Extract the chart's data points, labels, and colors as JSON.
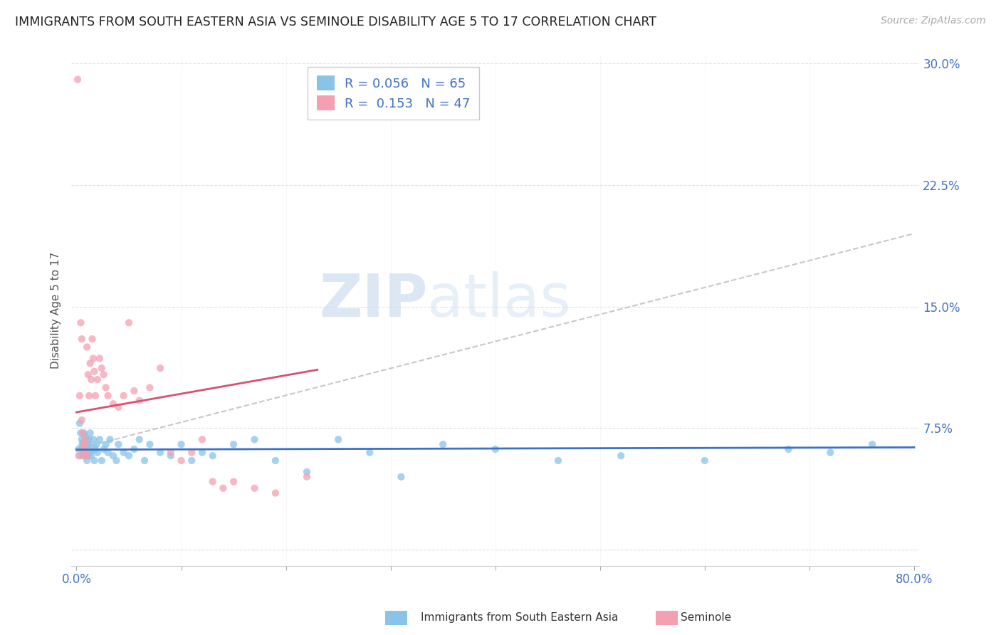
{
  "title": "IMMIGRANTS FROM SOUTH EASTERN ASIA VS SEMINOLE DISABILITY AGE 5 TO 17 CORRELATION CHART",
  "source": "Source: ZipAtlas.com",
  "ylabel": "Disability Age 5 to 17",
  "watermark_zip": "ZIP",
  "watermark_atlas": "atlas",
  "xlim": [
    0.0,
    0.8
  ],
  "ylim": [
    0.0,
    0.3
  ],
  "yticks": [
    0.0,
    0.075,
    0.15,
    0.225,
    0.3
  ],
  "ytick_labels": [
    "",
    "7.5%",
    "15.0%",
    "22.5%",
    "30.0%"
  ],
  "blue_R": 0.056,
  "blue_N": 65,
  "pink_R": 0.153,
  "pink_N": 47,
  "blue_color": "#89C4E8",
  "pink_color": "#F4A0B0",
  "blue_line_color": "#3B72C4",
  "pink_line_color": "#D95070",
  "grid_color": "#DDDDDD",
  "text_color": "#4472C4",
  "legend_label_blue": "Immigrants from South Eastern Asia",
  "legend_label_pink": "Seminole",
  "blue_x": [
    0.002,
    0.003,
    0.004,
    0.004,
    0.005,
    0.005,
    0.006,
    0.006,
    0.007,
    0.007,
    0.008,
    0.008,
    0.009,
    0.009,
    0.01,
    0.01,
    0.011,
    0.011,
    0.012,
    0.012,
    0.013,
    0.013,
    0.014,
    0.015,
    0.016,
    0.017,
    0.018,
    0.019,
    0.02,
    0.022,
    0.024,
    0.026,
    0.028,
    0.03,
    0.032,
    0.035,
    0.038,
    0.04,
    0.045,
    0.05,
    0.055,
    0.06,
    0.065,
    0.07,
    0.08,
    0.09,
    0.1,
    0.11,
    0.12,
    0.13,
    0.15,
    0.17,
    0.19,
    0.22,
    0.25,
    0.28,
    0.31,
    0.35,
    0.4,
    0.46,
    0.52,
    0.6,
    0.68,
    0.72,
    0.76
  ],
  "blue_y": [
    0.062,
    0.078,
    0.058,
    0.072,
    0.064,
    0.068,
    0.06,
    0.066,
    0.058,
    0.072,
    0.065,
    0.07,
    0.06,
    0.068,
    0.062,
    0.055,
    0.065,
    0.058,
    0.068,
    0.065,
    0.06,
    0.072,
    0.058,
    0.062,
    0.068,
    0.055,
    0.062,
    0.065,
    0.06,
    0.068,
    0.055,
    0.062,
    0.065,
    0.06,
    0.068,
    0.058,
    0.055,
    0.065,
    0.06,
    0.058,
    0.062,
    0.068,
    0.055,
    0.065,
    0.06,
    0.058,
    0.065,
    0.055,
    0.06,
    0.058,
    0.065,
    0.068,
    0.055,
    0.048,
    0.068,
    0.06,
    0.045,
    0.065,
    0.062,
    0.055,
    0.058,
    0.055,
    0.062,
    0.06,
    0.065
  ],
  "pink_x": [
    0.001,
    0.002,
    0.003,
    0.004,
    0.005,
    0.005,
    0.006,
    0.006,
    0.007,
    0.007,
    0.008,
    0.008,
    0.009,
    0.01,
    0.01,
    0.011,
    0.012,
    0.013,
    0.014,
    0.015,
    0.016,
    0.017,
    0.018,
    0.02,
    0.022,
    0.024,
    0.026,
    0.028,
    0.03,
    0.035,
    0.04,
    0.045,
    0.05,
    0.055,
    0.06,
    0.07,
    0.08,
    0.09,
    0.1,
    0.11,
    0.12,
    0.13,
    0.14,
    0.15,
    0.17,
    0.19,
    0.22
  ],
  "pink_y": [
    0.29,
    0.058,
    0.095,
    0.14,
    0.13,
    0.08,
    0.072,
    0.062,
    0.065,
    0.058,
    0.068,
    0.065,
    0.06,
    0.058,
    0.125,
    0.108,
    0.095,
    0.115,
    0.105,
    0.13,
    0.118,
    0.11,
    0.095,
    0.105,
    0.118,
    0.112,
    0.108,
    0.1,
    0.095,
    0.09,
    0.088,
    0.095,
    0.14,
    0.098,
    0.092,
    0.1,
    0.112,
    0.06,
    0.055,
    0.06,
    0.068,
    0.042,
    0.038,
    0.042,
    0.038,
    0.035,
    0.045
  ]
}
